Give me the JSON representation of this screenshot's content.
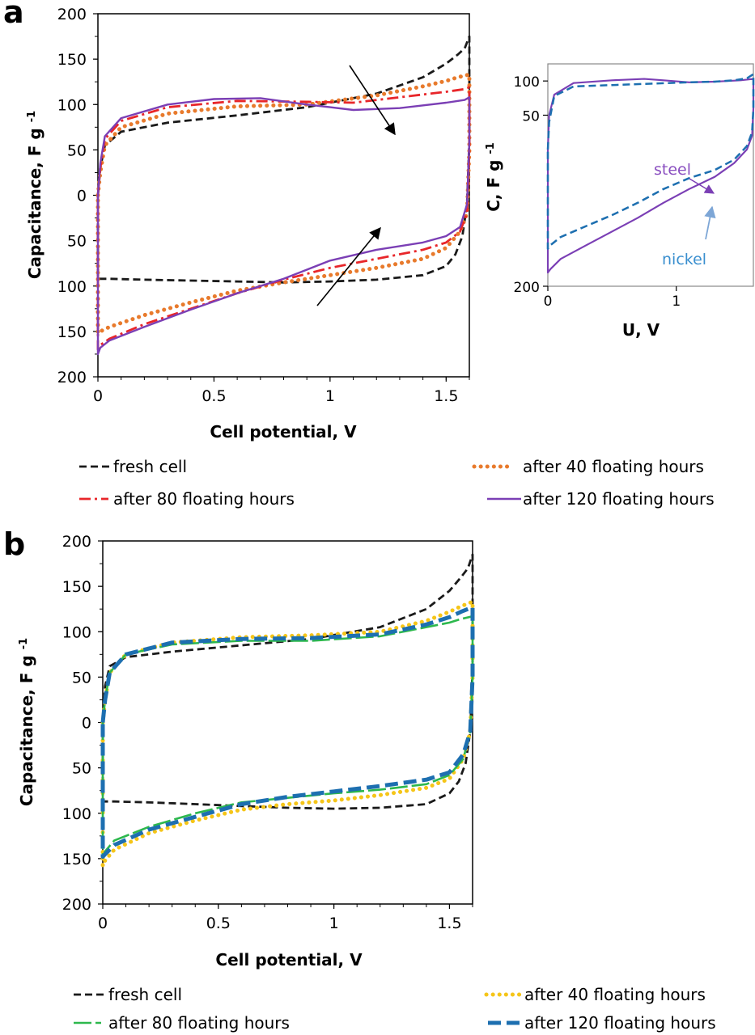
{
  "panel_a_label": "a",
  "panel_b_label": "b",
  "chart_data": [
    {
      "id": "panel-a",
      "type": "line",
      "title": "",
      "xlabel": "Cell potential, V",
      "ylabel": "Capacitance, F g",
      "ylabel_sup": "-1",
      "xlim": [
        0,
        1.6
      ],
      "ylim_display": [
        -200,
        200
      ],
      "xticks": [
        0,
        0.5,
        1,
        1.5
      ],
      "xtick_labels": [
        "0",
        "0.5",
        "1",
        "1.5"
      ],
      "yticks": [
        200,
        150,
        100,
        50,
        0,
        -50,
        -100,
        -150,
        -200
      ],
      "ytick_labels": [
        "200",
        "150",
        "100",
        "50",
        "0",
        "50",
        "100",
        "150",
        "200"
      ],
      "grid": false,
      "legend_position": "bottom",
      "series": [
        {
          "name": "fresh cell",
          "color": "#1a1a1a",
          "dash": "dashed",
          "x": [
            0,
            0.01,
            0.03,
            0.1,
            0.3,
            0.6,
            0.9,
            1.2,
            1.4,
            1.5,
            1.55,
            1.58,
            1.6,
            1.6,
            1.59,
            1.57,
            1.54,
            1.5,
            1.4,
            1.2,
            1.0,
            0.8,
            0.6,
            0.4,
            0.2,
            0.05,
            0.01,
            0,
            0
          ],
          "y": [
            0,
            30,
            55,
            70,
            80,
            88,
            97,
            112,
            130,
            145,
            155,
            162,
            175,
            60,
            -10,
            -45,
            -65,
            -78,
            -88,
            -93,
            -95,
            -96,
            -95,
            -94,
            -93,
            -92,
            -92,
            -92,
            0
          ]
        },
        {
          "name": "after 40 floating hours",
          "color": "#e87a2c",
          "dash": "dotted",
          "x": [
            0,
            0.01,
            0.03,
            0.1,
            0.3,
            0.6,
            0.9,
            1.2,
            1.4,
            1.5,
            1.55,
            1.6,
            1.6,
            1.59,
            1.56,
            1.5,
            1.4,
            1.2,
            1.0,
            0.8,
            0.6,
            0.4,
            0.2,
            0.05,
            0.01,
            0,
            0
          ],
          "y": [
            0,
            25,
            55,
            75,
            90,
            98,
            100,
            110,
            120,
            126,
            130,
            133,
            50,
            -20,
            -40,
            -58,
            -70,
            -80,
            -88,
            -96,
            -105,
            -118,
            -132,
            -145,
            -150,
            -152,
            0
          ]
        },
        {
          "name": "after 80 floating hours",
          "color": "#e8262a",
          "dash": "dashdot",
          "x": [
            0,
            0.01,
            0.03,
            0.1,
            0.3,
            0.6,
            0.9,
            1.1,
            1.3,
            1.5,
            1.58,
            1.6,
            1.6,
            1.59,
            1.56,
            1.5,
            1.4,
            1.2,
            1.0,
            0.8,
            0.6,
            0.4,
            0.2,
            0.05,
            0.01,
            0,
            0
          ],
          "y": [
            0,
            30,
            62,
            82,
            97,
            104,
            103,
            102,
            108,
            114,
            117,
            119,
            50,
            -20,
            -40,
            -52,
            -60,
            -70,
            -80,
            -93,
            -108,
            -125,
            -142,
            -158,
            -165,
            -170,
            0
          ]
        },
        {
          "name": "after 120 floating hours",
          "color": "#7b3fb5",
          "dash": "solid",
          "x": [
            0,
            0.01,
            0.03,
            0.1,
            0.3,
            0.5,
            0.7,
            0.9,
            1.0,
            1.1,
            1.3,
            1.5,
            1.58,
            1.6,
            1.6,
            1.59,
            1.56,
            1.5,
            1.4,
            1.2,
            1.0,
            0.8,
            0.6,
            0.4,
            0.2,
            0.05,
            0.01,
            0,
            0
          ],
          "y": [
            0,
            35,
            65,
            85,
            100,
            106,
            107,
            100,
            97,
            94,
            96,
            102,
            105,
            108,
            60,
            -10,
            -35,
            -45,
            -52,
            -60,
            -72,
            -92,
            -108,
            -126,
            -145,
            -160,
            -168,
            -175,
            0
          ]
        }
      ]
    },
    {
      "id": "panel-a-inset",
      "type": "line",
      "title": "",
      "xlabel": "U, V",
      "ylabel": "C, F g",
      "ylabel_sup": "-1",
      "xlim": [
        0,
        1.6
      ],
      "ylim_display": [
        -200,
        125
      ],
      "xticks": [
        0,
        1
      ],
      "xtick_labels": [
        "0",
        "1"
      ],
      "yticks": [
        100,
        50,
        -200
      ],
      "ytick_labels": [
        "100",
        "50",
        "200"
      ],
      "annotations": [
        {
          "text": "steel",
          "color": "#8a4fc0"
        },
        {
          "text": "nickel",
          "color": "#3a8fcf"
        }
      ],
      "series": [
        {
          "name": "steel",
          "color": "#7b3fb5",
          "dash": "solid",
          "x": [
            0,
            0.01,
            0.05,
            0.2,
            0.5,
            0.75,
            0.9,
            1.1,
            1.3,
            1.5,
            1.6,
            1.6,
            1.59,
            1.55,
            1.45,
            1.3,
            1.1,
            0.9,
            0.7,
            0.5,
            0.3,
            0.1,
            0.02,
            0,
            0
          ],
          "y": [
            0,
            50,
            80,
            97,
            101,
            103,
            101,
            98,
            99,
            101,
            103,
            60,
            20,
            0,
            -20,
            -40,
            -58,
            -78,
            -100,
            -120,
            -140,
            -160,
            -175,
            -180,
            0
          ]
        },
        {
          "name": "nickel",
          "color": "#1d6fb0",
          "dash": "dashed",
          "x": [
            0,
            0.01,
            0.05,
            0.2,
            0.5,
            0.8,
            1.1,
            1.3,
            1.45,
            1.55,
            1.6,
            1.6,
            1.59,
            1.55,
            1.45,
            1.3,
            1.1,
            0.9,
            0.7,
            0.5,
            0.3,
            0.1,
            0.02,
            0,
            0
          ],
          "y": [
            0,
            40,
            78,
            92,
            94,
            96,
            98,
            99,
            101,
            104,
            110,
            60,
            25,
            5,
            -15,
            -30,
            -42,
            -58,
            -78,
            -96,
            -112,
            -128,
            -140,
            -145,
            0
          ]
        }
      ]
    },
    {
      "id": "panel-b",
      "type": "line",
      "title": "",
      "xlabel": "Cell potential, V",
      "ylabel": "Capacitance, F g",
      "ylabel_sup": "-1",
      "xlim": [
        0,
        1.6
      ],
      "ylim_display": [
        -200,
        200
      ],
      "xticks": [
        0,
        0.5,
        1,
        1.5
      ],
      "xtick_labels": [
        "0",
        "0.5",
        "1",
        "1.5"
      ],
      "yticks": [
        200,
        150,
        100,
        50,
        0,
        -50,
        -100,
        -150,
        -200
      ],
      "ytick_labels": [
        "200",
        "150",
        "100",
        "50",
        "0",
        "50",
        "100",
        "150",
        "200"
      ],
      "grid": false,
      "legend_position": "bottom",
      "series": [
        {
          "name": "fresh cell",
          "color": "#1a1a1a",
          "dash": "dashed",
          "x": [
            0,
            0.01,
            0.03,
            0.1,
            0.3,
            0.6,
            0.9,
            1.2,
            1.4,
            1.5,
            1.55,
            1.58,
            1.6,
            1.6,
            1.59,
            1.57,
            1.54,
            1.5,
            1.4,
            1.2,
            1.0,
            0.8,
            0.6,
            0.4,
            0.2,
            0.05,
            0.01,
            0,
            0
          ],
          "y": [
            0,
            40,
            62,
            72,
            78,
            85,
            92,
            105,
            125,
            145,
            160,
            170,
            185,
            60,
            -10,
            -45,
            -65,
            -78,
            -90,
            -94,
            -95,
            -94,
            -92,
            -90,
            -88,
            -87,
            -87,
            -87,
            0
          ]
        },
        {
          "name": "after 40 floating hours",
          "color": "#f5c518",
          "dash": "dotted",
          "x": [
            0,
            0.01,
            0.03,
            0.1,
            0.3,
            0.6,
            0.9,
            1.2,
            1.4,
            1.5,
            1.55,
            1.6,
            1.6,
            1.59,
            1.56,
            1.5,
            1.4,
            1.2,
            1.0,
            0.8,
            0.6,
            0.4,
            0.2,
            0.05,
            0.01,
            0,
            0
          ],
          "y": [
            0,
            25,
            55,
            75,
            88,
            94,
            96,
            100,
            112,
            122,
            128,
            133,
            50,
            -10,
            -40,
            -62,
            -72,
            -80,
            -86,
            -90,
            -96,
            -108,
            -122,
            -140,
            -152,
            -158,
            0
          ]
        },
        {
          "name": "after 80 floating hours",
          "color": "#2db84d",
          "dash": "longdash",
          "x": [
            0,
            0.01,
            0.03,
            0.1,
            0.3,
            0.6,
            0.9,
            1.2,
            1.4,
            1.5,
            1.55,
            1.6,
            1.6,
            1.59,
            1.56,
            1.5,
            1.4,
            1.2,
            1.0,
            0.8,
            0.6,
            0.4,
            0.2,
            0.05,
            0.01,
            0,
            0
          ],
          "y": [
            0,
            25,
            55,
            75,
            86,
            90,
            90,
            95,
            105,
            110,
            114,
            117,
            50,
            -10,
            -40,
            -58,
            -68,
            -74,
            -78,
            -83,
            -88,
            -100,
            -115,
            -130,
            -142,
            -148,
            0
          ]
        },
        {
          "name": "after 120 floating hours",
          "color": "#1d6fb0",
          "dash": "heavydash",
          "x": [
            0,
            0.01,
            0.03,
            0.1,
            0.3,
            0.6,
            0.9,
            1.2,
            1.4,
            1.5,
            1.55,
            1.6,
            1.6,
            1.59,
            1.56,
            1.5,
            1.4,
            1.2,
            1.0,
            0.8,
            0.6,
            0.4,
            0.2,
            0.05,
            0.01,
            0,
            0
          ],
          "y": [
            0,
            25,
            55,
            75,
            88,
            92,
            93,
            97,
            108,
            116,
            122,
            127,
            50,
            -10,
            -35,
            -55,
            -63,
            -70,
            -76,
            -82,
            -90,
            -104,
            -118,
            -135,
            -145,
            -148,
            0
          ]
        }
      ]
    }
  ]
}
